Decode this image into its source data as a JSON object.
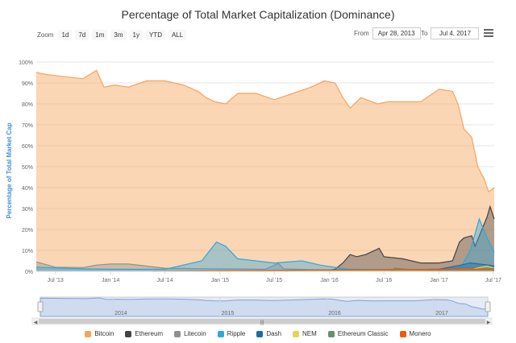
{
  "chart_data": {
    "type": "area",
    "title": "Percentage of Total Market Capitalization (Dominance)",
    "ylabel": "Percentage of Total Market Cap",
    "xlabel": "",
    "ylim": [
      0,
      100
    ],
    "xlim": [
      "2013-04-28",
      "2017-07-04"
    ],
    "y_ticks": [
      "0%",
      "10%",
      "20%",
      "30%",
      "40%",
      "50%",
      "60%",
      "70%",
      "80%",
      "90%",
      "100%"
    ],
    "x_ticks": [
      {
        "label": "Jul '13",
        "date": "2013-07-01"
      },
      {
        "label": "Jan '14",
        "date": "2014-01-01"
      },
      {
        "label": "Jul '14",
        "date": "2014-07-01"
      },
      {
        "label": "Jan '15",
        "date": "2015-01-01"
      },
      {
        "label": "Jul '15",
        "date": "2015-07-01"
      },
      {
        "label": "Jan '16",
        "date": "2016-01-01"
      },
      {
        "label": "Jul '16",
        "date": "2016-07-01"
      },
      {
        "label": "Jan '17",
        "date": "2017-01-01"
      },
      {
        "label": "Jul '17",
        "date": "2017-07-01"
      }
    ],
    "navigator_labels": [
      {
        "label": "2014",
        "date": "2014-01-01"
      },
      {
        "label": "2015",
        "date": "2015-01-01"
      },
      {
        "label": "2016",
        "date": "2016-01-01"
      },
      {
        "label": "2017",
        "date": "2017-01-01"
      }
    ],
    "series": [
      {
        "name": "Bitcoin",
        "color": "#f7a35c",
        "points": [
          [
            "2013-04-28",
            95
          ],
          [
            "2013-06-01",
            94
          ],
          [
            "2013-08-01",
            93
          ],
          [
            "2013-10-01",
            92
          ],
          [
            "2013-11-15",
            96
          ],
          [
            "2013-12-10",
            88
          ],
          [
            "2014-01-15",
            89
          ],
          [
            "2014-03-01",
            88
          ],
          [
            "2014-05-01",
            91
          ],
          [
            "2014-07-01",
            91
          ],
          [
            "2014-09-01",
            89
          ],
          [
            "2014-10-20",
            86
          ],
          [
            "2014-11-15",
            83
          ],
          [
            "2014-12-15",
            81
          ],
          [
            "2015-01-20",
            80
          ],
          [
            "2015-03-01",
            85
          ],
          [
            "2015-05-01",
            85
          ],
          [
            "2015-07-01",
            82
          ],
          [
            "2015-09-01",
            85
          ],
          [
            "2015-11-01",
            88
          ],
          [
            "2015-12-15",
            91
          ],
          [
            "2016-01-20",
            90
          ],
          [
            "2016-02-15",
            83
          ],
          [
            "2016-03-10",
            78
          ],
          [
            "2016-04-15",
            83
          ],
          [
            "2016-06-10",
            80
          ],
          [
            "2016-07-15",
            81
          ],
          [
            "2016-09-01",
            81
          ],
          [
            "2016-11-01",
            81
          ],
          [
            "2017-01-01",
            87
          ],
          [
            "2017-02-15",
            86
          ],
          [
            "2017-03-05",
            80
          ],
          [
            "2017-03-25",
            68
          ],
          [
            "2017-04-20",
            64
          ],
          [
            "2017-05-10",
            50
          ],
          [
            "2017-06-01",
            44
          ],
          [
            "2017-06-15",
            38
          ],
          [
            "2017-07-04",
            40
          ]
        ]
      },
      {
        "name": "Ethereum",
        "color": "#434348",
        "points": [
          [
            "2015-08-07",
            0
          ],
          [
            "2015-12-31",
            0.5
          ],
          [
            "2016-01-20",
            1
          ],
          [
            "2016-02-15",
            4
          ],
          [
            "2016-03-10",
            8
          ],
          [
            "2016-04-01",
            7
          ],
          [
            "2016-05-01",
            8
          ],
          [
            "2016-06-15",
            11
          ],
          [
            "2016-07-01",
            7
          ],
          [
            "2016-09-01",
            6
          ],
          [
            "2016-11-01",
            4
          ],
          [
            "2017-01-01",
            4
          ],
          [
            "2017-02-15",
            5
          ],
          [
            "2017-03-10",
            14
          ],
          [
            "2017-03-25",
            16
          ],
          [
            "2017-04-20",
            17
          ],
          [
            "2017-05-01",
            12
          ],
          [
            "2017-06-10",
            26
          ],
          [
            "2017-06-20",
            31
          ],
          [
            "2017-07-04",
            25
          ]
        ]
      },
      {
        "name": "Litecoin",
        "color": "#90918b",
        "points": [
          [
            "2013-04-28",
            4.5
          ],
          [
            "2013-07-01",
            2
          ],
          [
            "2013-10-01",
            1.8
          ],
          [
            "2013-11-15",
            3
          ],
          [
            "2014-01-01",
            3.5
          ],
          [
            "2014-03-01",
            3.5
          ],
          [
            "2014-07-01",
            1.5
          ],
          [
            "2014-12-01",
            1.2
          ],
          [
            "2015-06-01",
            1
          ],
          [
            "2015-07-15",
            3.8
          ],
          [
            "2015-08-01",
            1.2
          ],
          [
            "2016-01-01",
            0.6
          ],
          [
            "2016-09-01",
            0.5
          ],
          [
            "2017-01-01",
            0.7
          ],
          [
            "2017-04-15",
            2
          ],
          [
            "2017-05-15",
            1.5
          ],
          [
            "2017-07-04",
            2
          ]
        ]
      },
      {
        "name": "Ripple",
        "color": "#2fa8db",
        "points": [
          [
            "2013-04-28",
            2
          ],
          [
            "2013-10-01",
            1.2
          ],
          [
            "2014-01-01",
            1
          ],
          [
            "2014-07-01",
            1
          ],
          [
            "2014-11-01",
            5
          ],
          [
            "2014-12-20",
            14
          ],
          [
            "2015-01-20",
            12
          ],
          [
            "2015-03-01",
            6
          ],
          [
            "2015-05-01",
            5
          ],
          [
            "2015-07-01",
            4
          ],
          [
            "2015-10-01",
            5
          ],
          [
            "2015-12-01",
            3
          ],
          [
            "2016-03-01",
            1
          ],
          [
            "2016-09-01",
            0.8
          ],
          [
            "2017-01-01",
            1
          ],
          [
            "2017-03-15",
            2
          ],
          [
            "2017-04-15",
            10
          ],
          [
            "2017-05-15",
            25
          ],
          [
            "2017-06-10",
            16
          ],
          [
            "2017-07-04",
            9
          ]
        ]
      },
      {
        "name": "Dash",
        "color": "#1c6aa6",
        "points": [
          [
            "2015-03-01",
            0.2
          ],
          [
            "2015-10-01",
            0.5
          ],
          [
            "2016-01-01",
            0.6
          ],
          [
            "2016-09-01",
            0.8
          ],
          [
            "2017-01-01",
            1
          ],
          [
            "2017-03-15",
            3
          ],
          [
            "2017-04-15",
            4
          ],
          [
            "2017-06-15",
            3
          ],
          [
            "2017-07-04",
            2.5
          ]
        ]
      },
      {
        "name": "NEM",
        "color": "#e4d354",
        "points": [
          [
            "2015-04-01",
            0
          ],
          [
            "2016-01-01",
            0.2
          ],
          [
            "2017-01-01",
            0.3
          ],
          [
            "2017-04-20",
            1
          ],
          [
            "2017-06-10",
            2.5
          ],
          [
            "2017-07-04",
            1.5
          ]
        ]
      },
      {
        "name": "Ethereum Classic",
        "color": "#6a8f6a",
        "points": [
          [
            "2016-07-24",
            0
          ],
          [
            "2016-08-05",
            1.5
          ],
          [
            "2016-10-01",
            0.8
          ],
          [
            "2017-01-01",
            0.5
          ],
          [
            "2017-05-01",
            1
          ],
          [
            "2017-06-10",
            1.5
          ],
          [
            "2017-07-04",
            1.3
          ]
        ]
      },
      {
        "name": "Monero",
        "color": "#f15c00",
        "points": [
          [
            "2014-05-21",
            0
          ],
          [
            "2015-01-01",
            0.3
          ],
          [
            "2016-09-01",
            0.8
          ],
          [
            "2017-01-01",
            1
          ],
          [
            "2017-04-01",
            1.2
          ],
          [
            "2017-07-04",
            0.8
          ]
        ]
      }
    ]
  },
  "controls": {
    "zoom_label": "Zoom",
    "zoom_buttons": [
      "1d",
      "7d",
      "1m",
      "3m",
      "1y",
      "YTD",
      "ALL"
    ],
    "from_label": "From",
    "from_value": "Apr 28, 2013",
    "to_label": "To",
    "to_value": "Jul 4, 2017"
  },
  "navigator": {
    "handle_glyph": "|||"
  }
}
